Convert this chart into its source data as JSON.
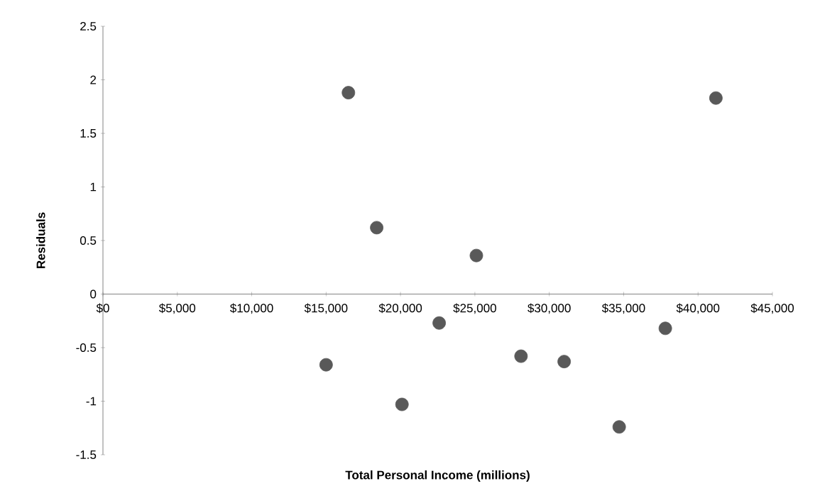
{
  "chart_data": {
    "type": "scatter",
    "xlabel": "Total Personal Income (millions)",
    "ylabel": "Residuals",
    "x": [
      15000,
      16500,
      18400,
      20100,
      22600,
      25100,
      28100,
      31000,
      34700,
      37800,
      41200
    ],
    "values": [
      -0.66,
      1.88,
      0.62,
      -1.03,
      -0.27,
      0.36,
      -0.58,
      -0.63,
      -1.24,
      -0.32,
      1.83
    ],
    "color": "#595959",
    "marker": "circle",
    "xlim": [
      0,
      45000
    ],
    "xticks": [
      {
        "value": 0,
        "label": "$0"
      },
      {
        "value": 5000,
        "label": "$5,000"
      },
      {
        "value": 10000,
        "label": "$10,000"
      },
      {
        "value": 15000,
        "label": "$15,000"
      },
      {
        "value": 20000,
        "label": "$20,000"
      },
      {
        "value": 25000,
        "label": "$25,000"
      },
      {
        "value": 30000,
        "label": "$30,000"
      },
      {
        "value": 35000,
        "label": "$35,000"
      },
      {
        "value": 40000,
        "label": "$40,000"
      },
      {
        "value": 45000,
        "label": "$45,000"
      }
    ],
    "ylim": [
      -1.5,
      2.5
    ],
    "yticks": [
      -1.5,
      -1,
      -0.5,
      0,
      0.5,
      1,
      1.5,
      2,
      2.5
    ]
  }
}
